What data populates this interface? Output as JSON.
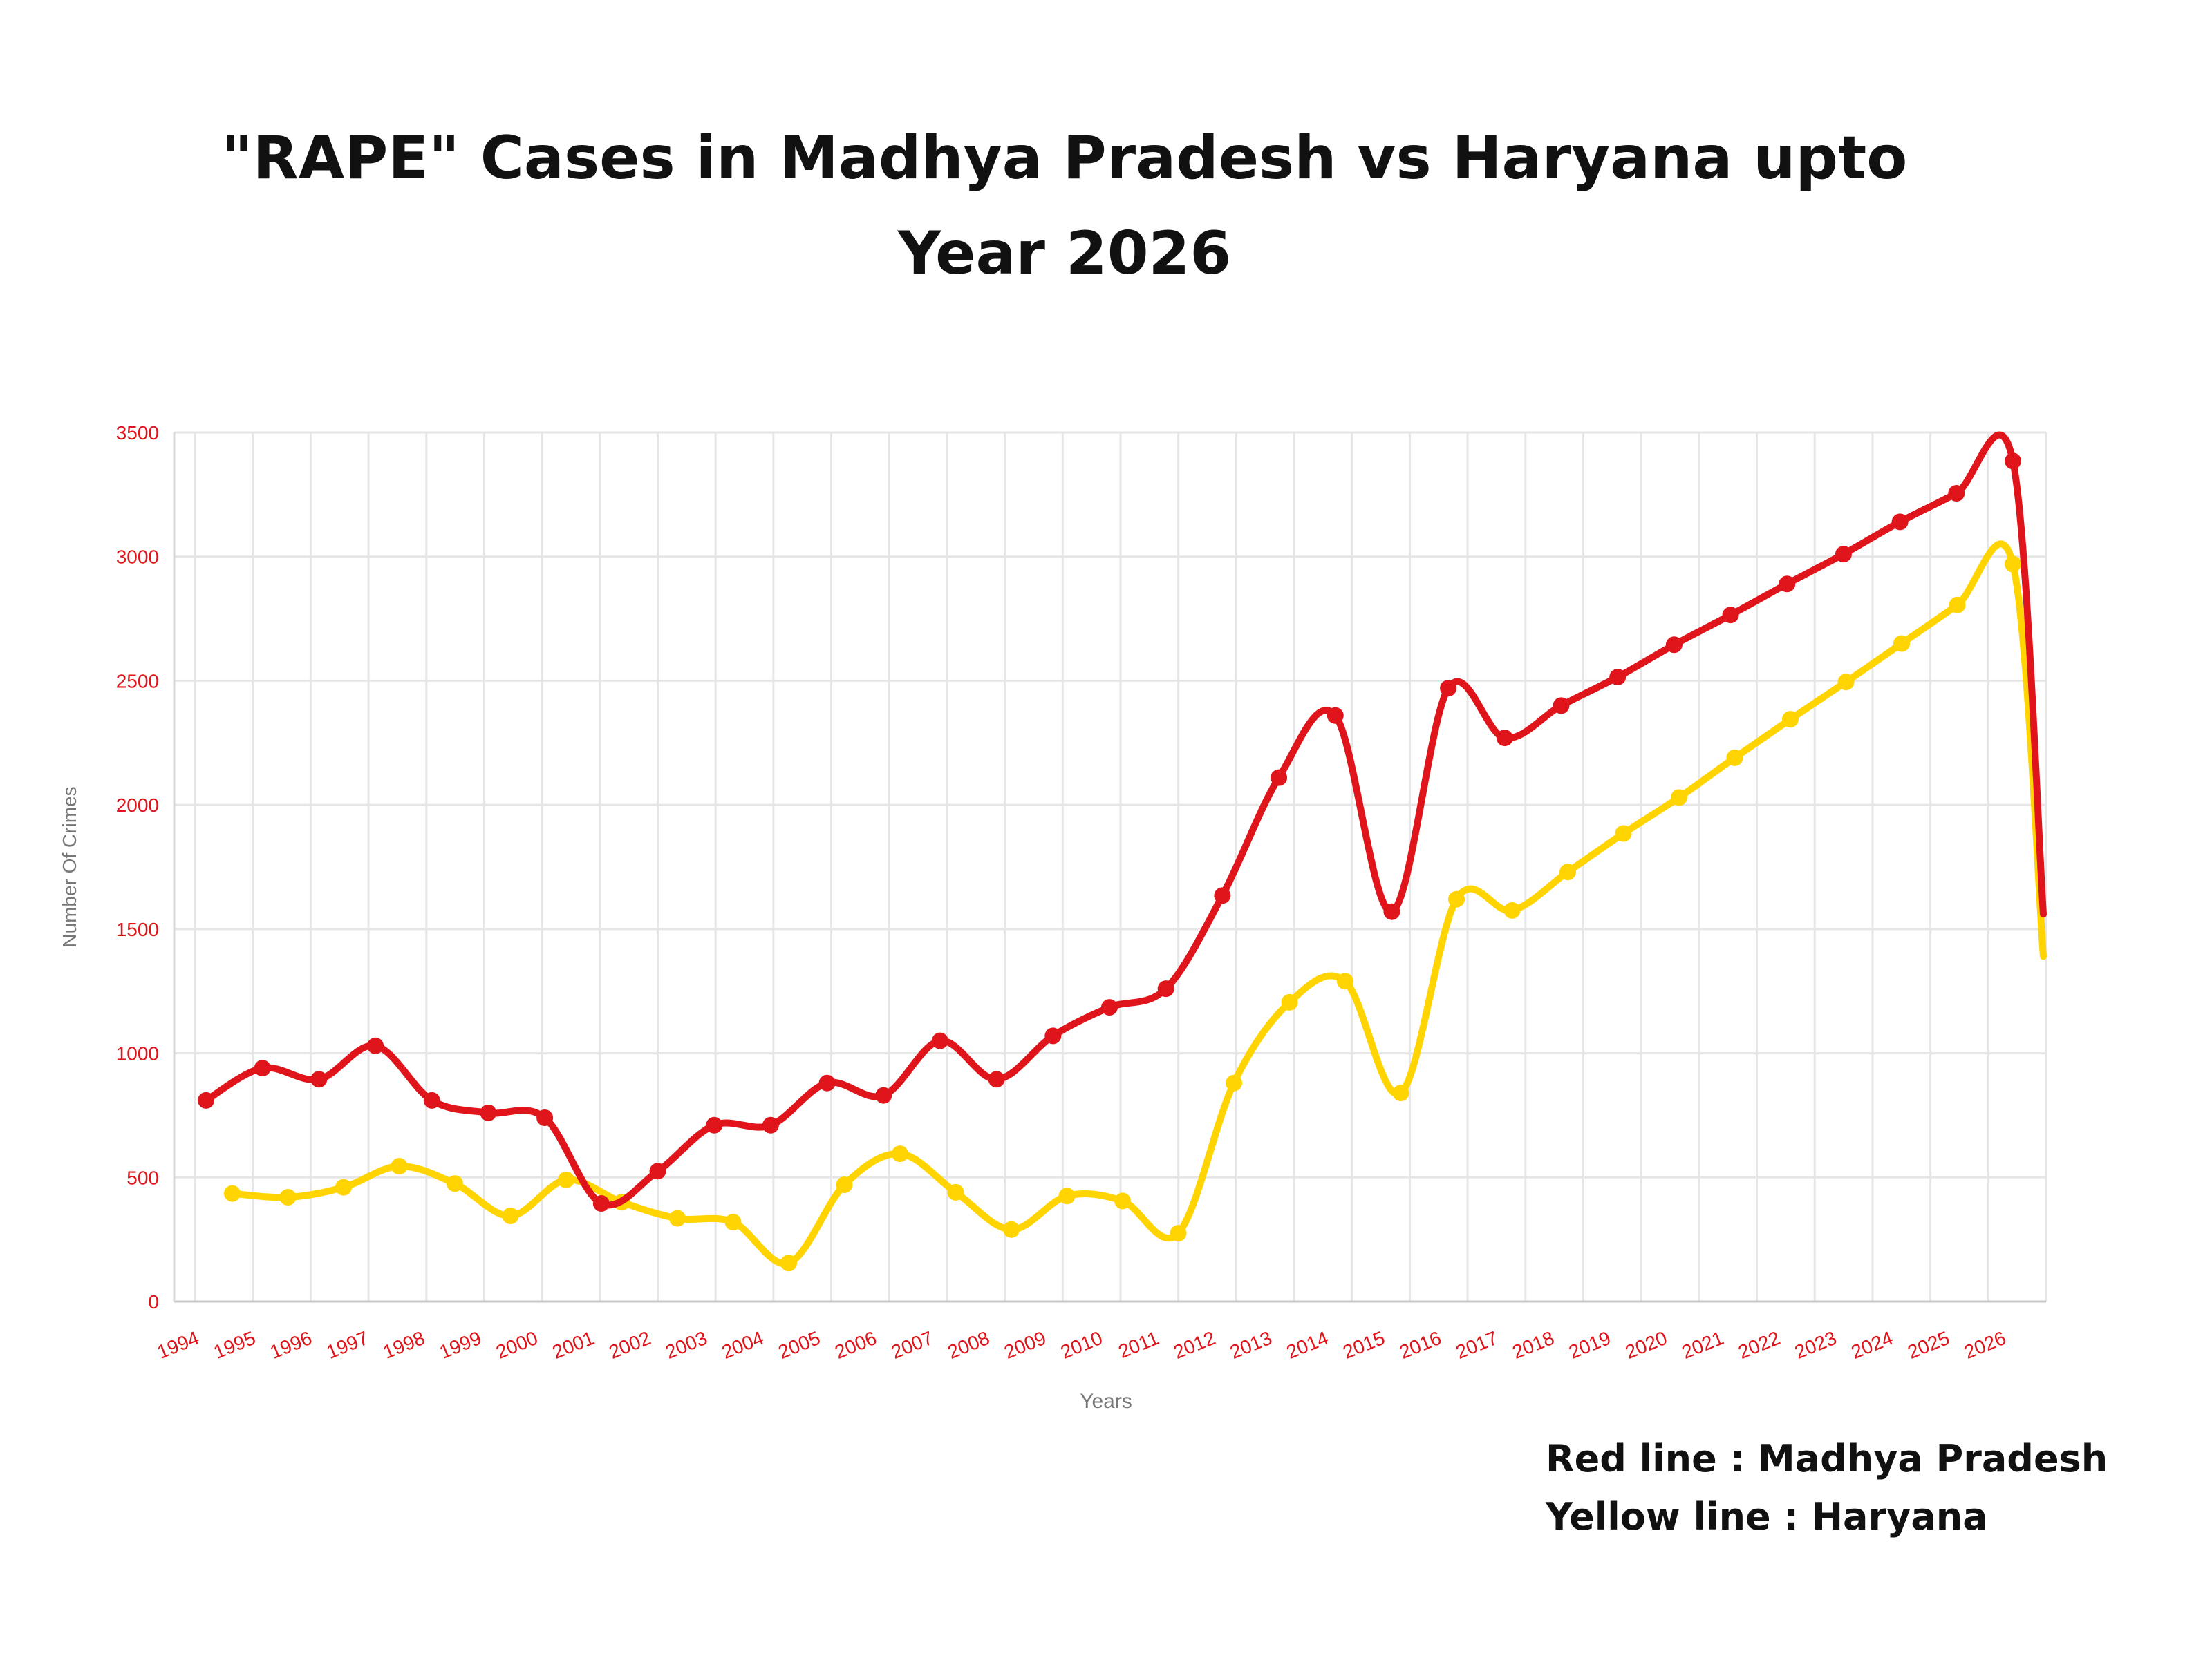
{
  "title_line1": "\"RAPE\" Cases in Madhya Pradesh vs Haryana upto",
  "title_line2": "Year 2026",
  "legend_notes": [
    "Red line : Madhya Pradesh",
    "Yellow line : Haryana"
  ],
  "colors": {
    "madhya_pradesh": "#e0141b",
    "haryana": "#ffd400",
    "tick_text": "#e0141b",
    "grid": "#e6e6e6"
  },
  "chart_data": {
    "type": "line",
    "xlabel": "Years",
    "ylabel": "Number Of Crimes",
    "ylim": [
      0,
      3500
    ],
    "yticks": [
      0,
      500,
      1000,
      1500,
      2000,
      2500,
      3000,
      3500
    ],
    "categories": [
      "1994",
      "1995",
      "1996",
      "1997",
      "1998",
      "1999",
      "2000",
      "2001",
      "2002",
      "2003",
      "2004",
      "2005",
      "2006",
      "2007",
      "2008",
      "2009",
      "2010",
      "2011",
      "2012",
      "2013",
      "2014",
      "2015",
      "2016",
      "2017",
      "2018",
      "2019",
      "2020",
      "2021",
      "2022",
      "2023",
      "2024",
      "2025",
      "2026"
    ],
    "grid": true,
    "series": [
      {
        "color": "red",
        "values": [
          810,
          940,
          895,
          1030,
          810,
          760,
          740,
          395,
          525,
          710,
          710,
          880,
          830,
          1050,
          895,
          1070,
          1185,
          1260,
          1635,
          2110,
          2360,
          1570,
          2470,
          2270,
          2400,
          2515,
          2645,
          2765,
          2890,
          3010,
          3140,
          3255,
          3385
        ]
      },
      {
        "color": "yellow",
        "values": [
          435,
          420,
          460,
          545,
          475,
          345,
          490,
          400,
          335,
          320,
          155,
          470,
          595,
          440,
          290,
          425,
          405,
          275,
          880,
          1205,
          1290,
          840,
          1620,
          1575,
          1730,
          1885,
          2030,
          2190,
          2345,
          2495,
          2650,
          2805,
          2970
        ]
      }
    ]
  }
}
